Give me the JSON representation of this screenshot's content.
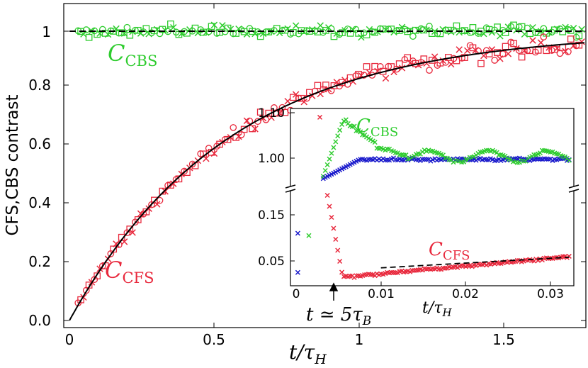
{
  "chart_data": [
    {
      "id": "main",
      "type": "scatter",
      "ylabel": "CFS,CBS contrast",
      "xlabel": "t/τ_H",
      "xlabel_main": "t/τ",
      "xlabel_sub": "H",
      "xlim": [
        0,
        1.8
      ],
      "ylim": [
        0,
        1.1
      ],
      "xticks": [
        0,
        0.5,
        1,
        1.5
      ],
      "xtick_labels": [
        "0",
        "0.5",
        "1",
        "1.5"
      ],
      "yticks": [
        0.0,
        0.2,
        0.4,
        0.6,
        0.8,
        1.0
      ],
      "ytick_labels": [
        "0.0",
        "0.2",
        "0.4",
        "0.6",
        "0.8",
        "1"
      ],
      "cfs_rate": 1.81,
      "cbs_reference": 1.0,
      "series": [
        {
          "name": "C_CFS",
          "color": "#e8283c",
          "markers": [
            "circle",
            "square",
            "cross"
          ],
          "x_start": 0.03,
          "x_end": 1.78,
          "count_per_marker": 62
        },
        {
          "name": "C_CBS",
          "color": "#2ecc2e",
          "markers": [
            "circle",
            "square",
            "cross"
          ],
          "x_start": 0.03,
          "x_end": 1.78,
          "count_per_marker": 62
        },
        {
          "name": "theory CFS",
          "color": "#000000",
          "style": "solid"
        },
        {
          "name": "theory CBS",
          "color": "#000000",
          "style": "dashed"
        }
      ],
      "annotations": [
        {
          "text_main": "C",
          "text_sub": "CBS",
          "color": "#2ecc2e"
        },
        {
          "text_main": "C",
          "text_sub": "CFS",
          "color": "#e8283c"
        }
      ]
    },
    {
      "id": "inset",
      "type": "scatter",
      "xlabel": "t/τ_H",
      "xlabel_main": "t/τ",
      "xlabel_sub": "H",
      "xlim": [
        0,
        0.0325
      ],
      "broken_y_axis": true,
      "upper_ylim": [
        0.94,
        1.11
      ],
      "lower_ylim": [
        0.0,
        0.2
      ],
      "xticks": [
        0,
        0.01,
        0.02,
        0.03
      ],
      "xtick_labels": [
        "0",
        "0.01",
        "0.02",
        "0.03"
      ],
      "upper_yticks": [
        1.0,
        1.1
      ],
      "upper_ytick_labels": [
        "1.00",
        "1.10"
      ],
      "lower_yticks": [
        0.05,
        0.15
      ],
      "lower_ytick_labels": [
        "0.05",
        "0.15"
      ],
      "series": [
        {
          "name": "C_CBS",
          "color": "#2ecc2e",
          "marker": "cross"
        },
        {
          "name": "C_CBS (reference)",
          "color": "#1a1acc",
          "marker": "cross"
        },
        {
          "name": "C_CFS",
          "color": "#e8283c",
          "marker": "cross"
        },
        {
          "name": "linear fit",
          "color": "#000000",
          "style": "dashed",
          "x_range": [
            0.01,
            0.0325
          ],
          "y_range": [
            0.035,
            0.058
          ]
        }
      ],
      "annotations": [
        {
          "text_main": "C",
          "text_sub": "CBS",
          "color": "#2ecc2e"
        },
        {
          "text_main": "C",
          "text_sub": "CFS",
          "color": "#e8283c"
        },
        {
          "text": "t ≃ 5τ",
          "text_sub": "B",
          "arrow_x": 0.0048
        }
      ]
    }
  ]
}
